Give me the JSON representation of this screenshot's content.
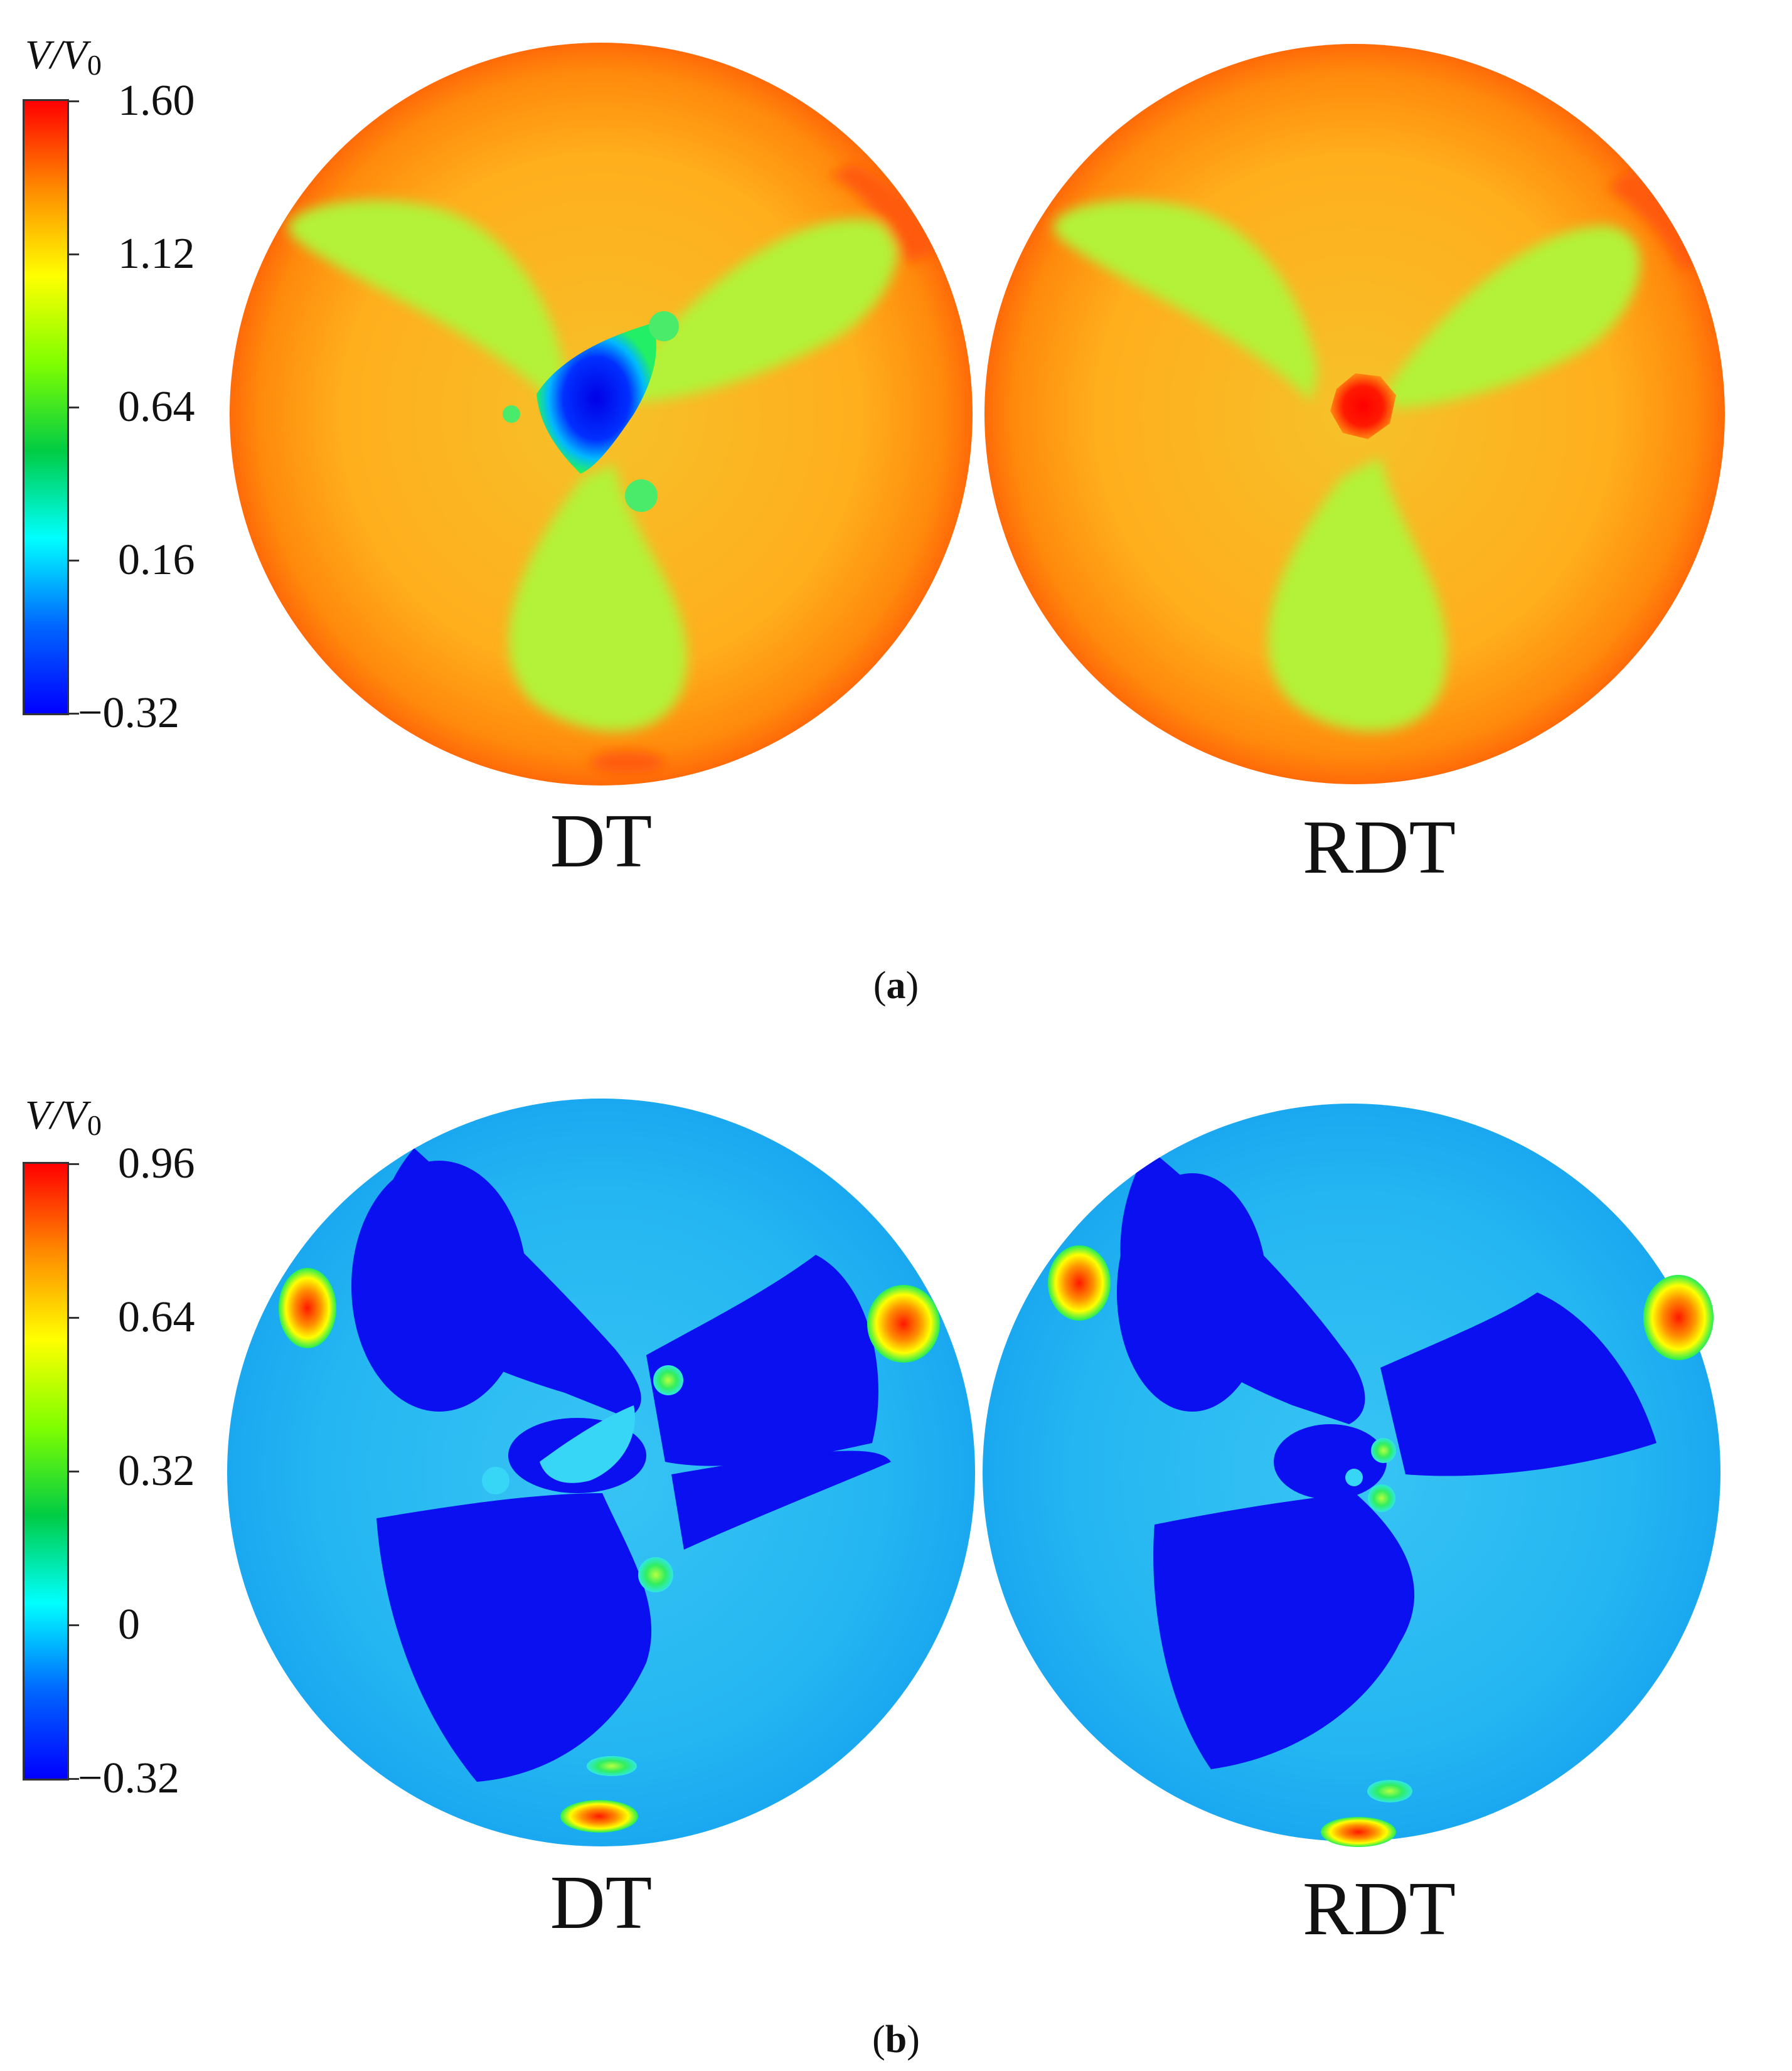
{
  "panels": [
    {
      "id": "a",
      "caption_letter": "a",
      "colorbar": {
        "title": "V/V0",
        "title_var": "V",
        "title_ref": "V",
        "title_ref_sub": "0",
        "ticks": [
          "1.60",
          "1.12",
          "0.64",
          "0.16",
          "−0.32"
        ],
        "colors": [
          "#ff0000",
          "#ff8a00",
          "#ffff00",
          "#7fff00",
          "#00cc44",
          "#00ffff",
          "#0066ff",
          "#0000ff"
        ]
      },
      "discs": [
        {
          "label": "DT",
          "center_feature": "low-velocity hub (blue)"
        },
        {
          "label": "RDT",
          "center_feature": "high-velocity hub (red)"
        }
      ],
      "background_color": "#ff9a1e",
      "lobe_color": "#a6ef2e"
    },
    {
      "id": "b",
      "caption_letter": "b",
      "colorbar": {
        "title": "V/V0",
        "title_var": "V",
        "title_ref": "V",
        "title_ref_sub": "0",
        "ticks": [
          "0.96",
          "0.64",
          "0.32",
          "0",
          "−0.32"
        ],
        "colors": [
          "#ff0000",
          "#ff8a00",
          "#ffff00",
          "#7fff00",
          "#00cc44",
          "#00ffff",
          "#0066ff",
          "#0000ff"
        ]
      },
      "discs": [
        {
          "label": "DT",
          "center_feature": "scattered cyan/green spots"
        },
        {
          "label": "RDT",
          "center_feature": "small green spots"
        }
      ],
      "background_color": "#1fb0f0",
      "lobe_color": "#0a0df0"
    }
  ]
}
